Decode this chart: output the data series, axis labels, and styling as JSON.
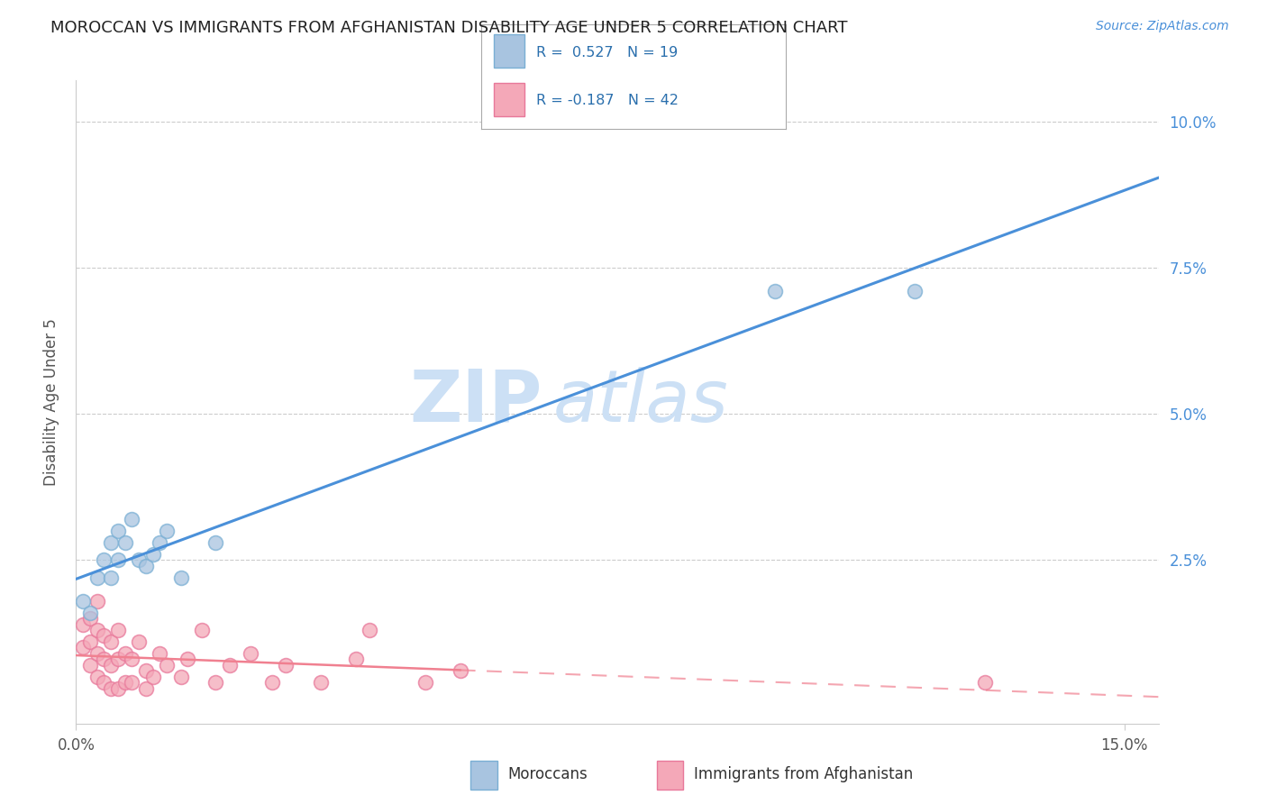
{
  "title": "MOROCCAN VS IMMIGRANTS FROM AFGHANISTAN DISABILITY AGE UNDER 5 CORRELATION CHART",
  "source": "Source: ZipAtlas.com",
  "ylabel": "Disability Age Under 5",
  "xlim": [
    0.0,
    0.155
  ],
  "ylim": [
    -0.003,
    0.107
  ],
  "color_moroccan": "#a8c4e0",
  "color_moroccan_edge": "#7aafd4",
  "color_afghan": "#f4a8b8",
  "color_afghan_edge": "#e8789a",
  "color_line1": "#4a90d9",
  "color_line2": "#f08090",
  "watermark_zip": "ZIP",
  "watermark_atlas": "atlas",
  "background": "#ffffff",
  "moroccan_x": [
    0.001,
    0.002,
    0.003,
    0.004,
    0.005,
    0.005,
    0.006,
    0.006,
    0.007,
    0.008,
    0.009,
    0.01,
    0.011,
    0.012,
    0.013,
    0.015,
    0.02,
    0.12,
    0.1
  ],
  "moroccan_y": [
    0.018,
    0.016,
    0.022,
    0.025,
    0.022,
    0.028,
    0.03,
    0.025,
    0.028,
    0.032,
    0.025,
    0.024,
    0.026,
    0.028,
    0.03,
    0.022,
    0.028,
    0.071,
    0.071
  ],
  "afghan_x": [
    0.001,
    0.001,
    0.002,
    0.002,
    0.002,
    0.003,
    0.003,
    0.003,
    0.003,
    0.004,
    0.004,
    0.004,
    0.005,
    0.005,
    0.005,
    0.006,
    0.006,
    0.006,
    0.007,
    0.007,
    0.008,
    0.008,
    0.009,
    0.01,
    0.01,
    0.011,
    0.012,
    0.013,
    0.015,
    0.016,
    0.018,
    0.02,
    0.022,
    0.025,
    0.028,
    0.03,
    0.035,
    0.04,
    0.042,
    0.05,
    0.055,
    0.13
  ],
  "afghan_y": [
    0.01,
    0.014,
    0.007,
    0.011,
    0.015,
    0.005,
    0.009,
    0.013,
    0.018,
    0.004,
    0.008,
    0.012,
    0.003,
    0.007,
    0.011,
    0.003,
    0.008,
    0.013,
    0.004,
    0.009,
    0.004,
    0.008,
    0.011,
    0.003,
    0.006,
    0.005,
    0.009,
    0.007,
    0.005,
    0.008,
    0.013,
    0.004,
    0.007,
    0.009,
    0.004,
    0.007,
    0.004,
    0.008,
    0.013,
    0.004,
    0.006,
    0.004
  ],
  "grid_color": "#cccccc",
  "yticks": [
    0.025,
    0.05,
    0.075,
    0.1
  ],
  "ytick_labels": [
    "2.5%",
    "5.0%",
    "7.5%",
    "10.0%"
  ],
  "legend_r1": "R =  0.527",
  "legend_n1": "N = 19",
  "legend_r2": "R = -0.187",
  "legend_n2": "N = 42"
}
